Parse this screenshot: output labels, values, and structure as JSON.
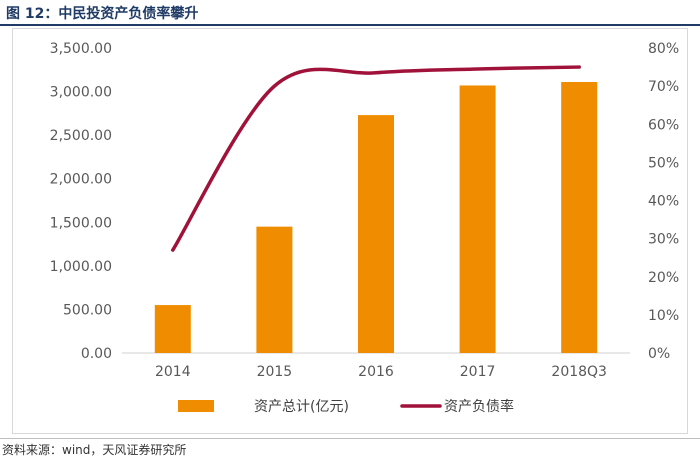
{
  "header": {
    "title": "图 12：中民投资产负债率攀升"
  },
  "footer": {
    "source": "资料来源：wind，天风证券研究所"
  },
  "colors": {
    "bar": "#F08C00",
    "line": "#A0123A",
    "title": "#1F3B66",
    "axis_text": "#595959"
  },
  "chart_data": {
    "type": "bar",
    "title": "",
    "categories": [
      "2014",
      "2015",
      "2016",
      "2017",
      "2018Q3"
    ],
    "series": [
      {
        "name": "资产总计(亿元)",
        "type": "bar",
        "axis": "left",
        "values": [
          550,
          1450,
          2730,
          3070,
          3110
        ]
      },
      {
        "name": "资产负债率",
        "type": "line",
        "axis": "right",
        "values": [
          0.27,
          0.7,
          0.735,
          0.745,
          0.75
        ]
      }
    ],
    "y_left": {
      "min": 0,
      "max": 3500,
      "step": 500,
      "tick_labels": [
        "0.00",
        "500.00",
        "1,000.00",
        "1,500.00",
        "2,000.00",
        "2,500.00",
        "3,000.00",
        "3,500.00"
      ]
    },
    "y_right": {
      "min": 0,
      "max": 0.8,
      "step": 0.1,
      "tick_labels": [
        "0%",
        "10%",
        "20%",
        "30%",
        "40%",
        "50%",
        "60%",
        "70%",
        "80%"
      ]
    },
    "grid": false,
    "legend_position": "bottom",
    "legend": [
      "资产总计(亿元)",
      "资产负债率"
    ]
  }
}
